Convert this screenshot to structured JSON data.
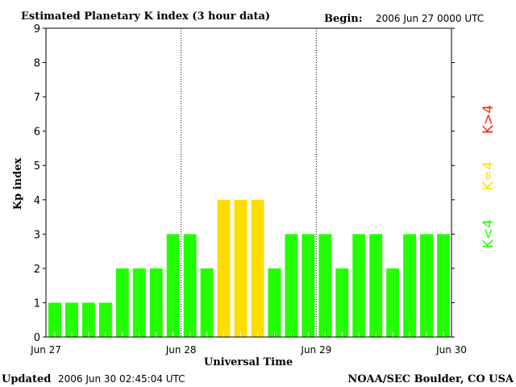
{
  "chart_data": {
    "type": "bar",
    "title": "Estimated Planetary K index (3 hour data)",
    "begin_label": "Begin:",
    "begin_value": "2006 Jun 27 0000 UTC",
    "xlabel": "Universal Time",
    "ylabel": "Kp index",
    "ylim": [
      0,
      9
    ],
    "yticks": [
      "0",
      "1",
      "2",
      "3",
      "4",
      "5",
      "6",
      "7",
      "8",
      "9"
    ],
    "xticks": [
      "Jun 27",
      "Jun 28",
      "Jun 29",
      "Jun 30"
    ],
    "values": [
      1,
      1,
      1,
      1,
      2,
      2,
      2,
      3,
      3,
      2,
      4,
      4,
      4,
      2,
      3,
      3,
      3,
      2,
      3,
      3,
      2,
      3,
      3,
      3
    ],
    "legend": [
      {
        "label": "K<4",
        "color": "#22ff00"
      },
      {
        "label": "K=4",
        "color": "#ffdd00"
      },
      {
        "label": "K>4",
        "color": "#ff2200"
      }
    ],
    "colors": {
      "low": "#22ff00",
      "mid": "#ffdd00",
      "high": "#ff2200"
    }
  },
  "footer": {
    "updated_label": "Updated",
    "updated_value": "2006 Jun 30 02:45:04 UTC",
    "source": "NOAA/SEC Boulder, CO USA"
  }
}
